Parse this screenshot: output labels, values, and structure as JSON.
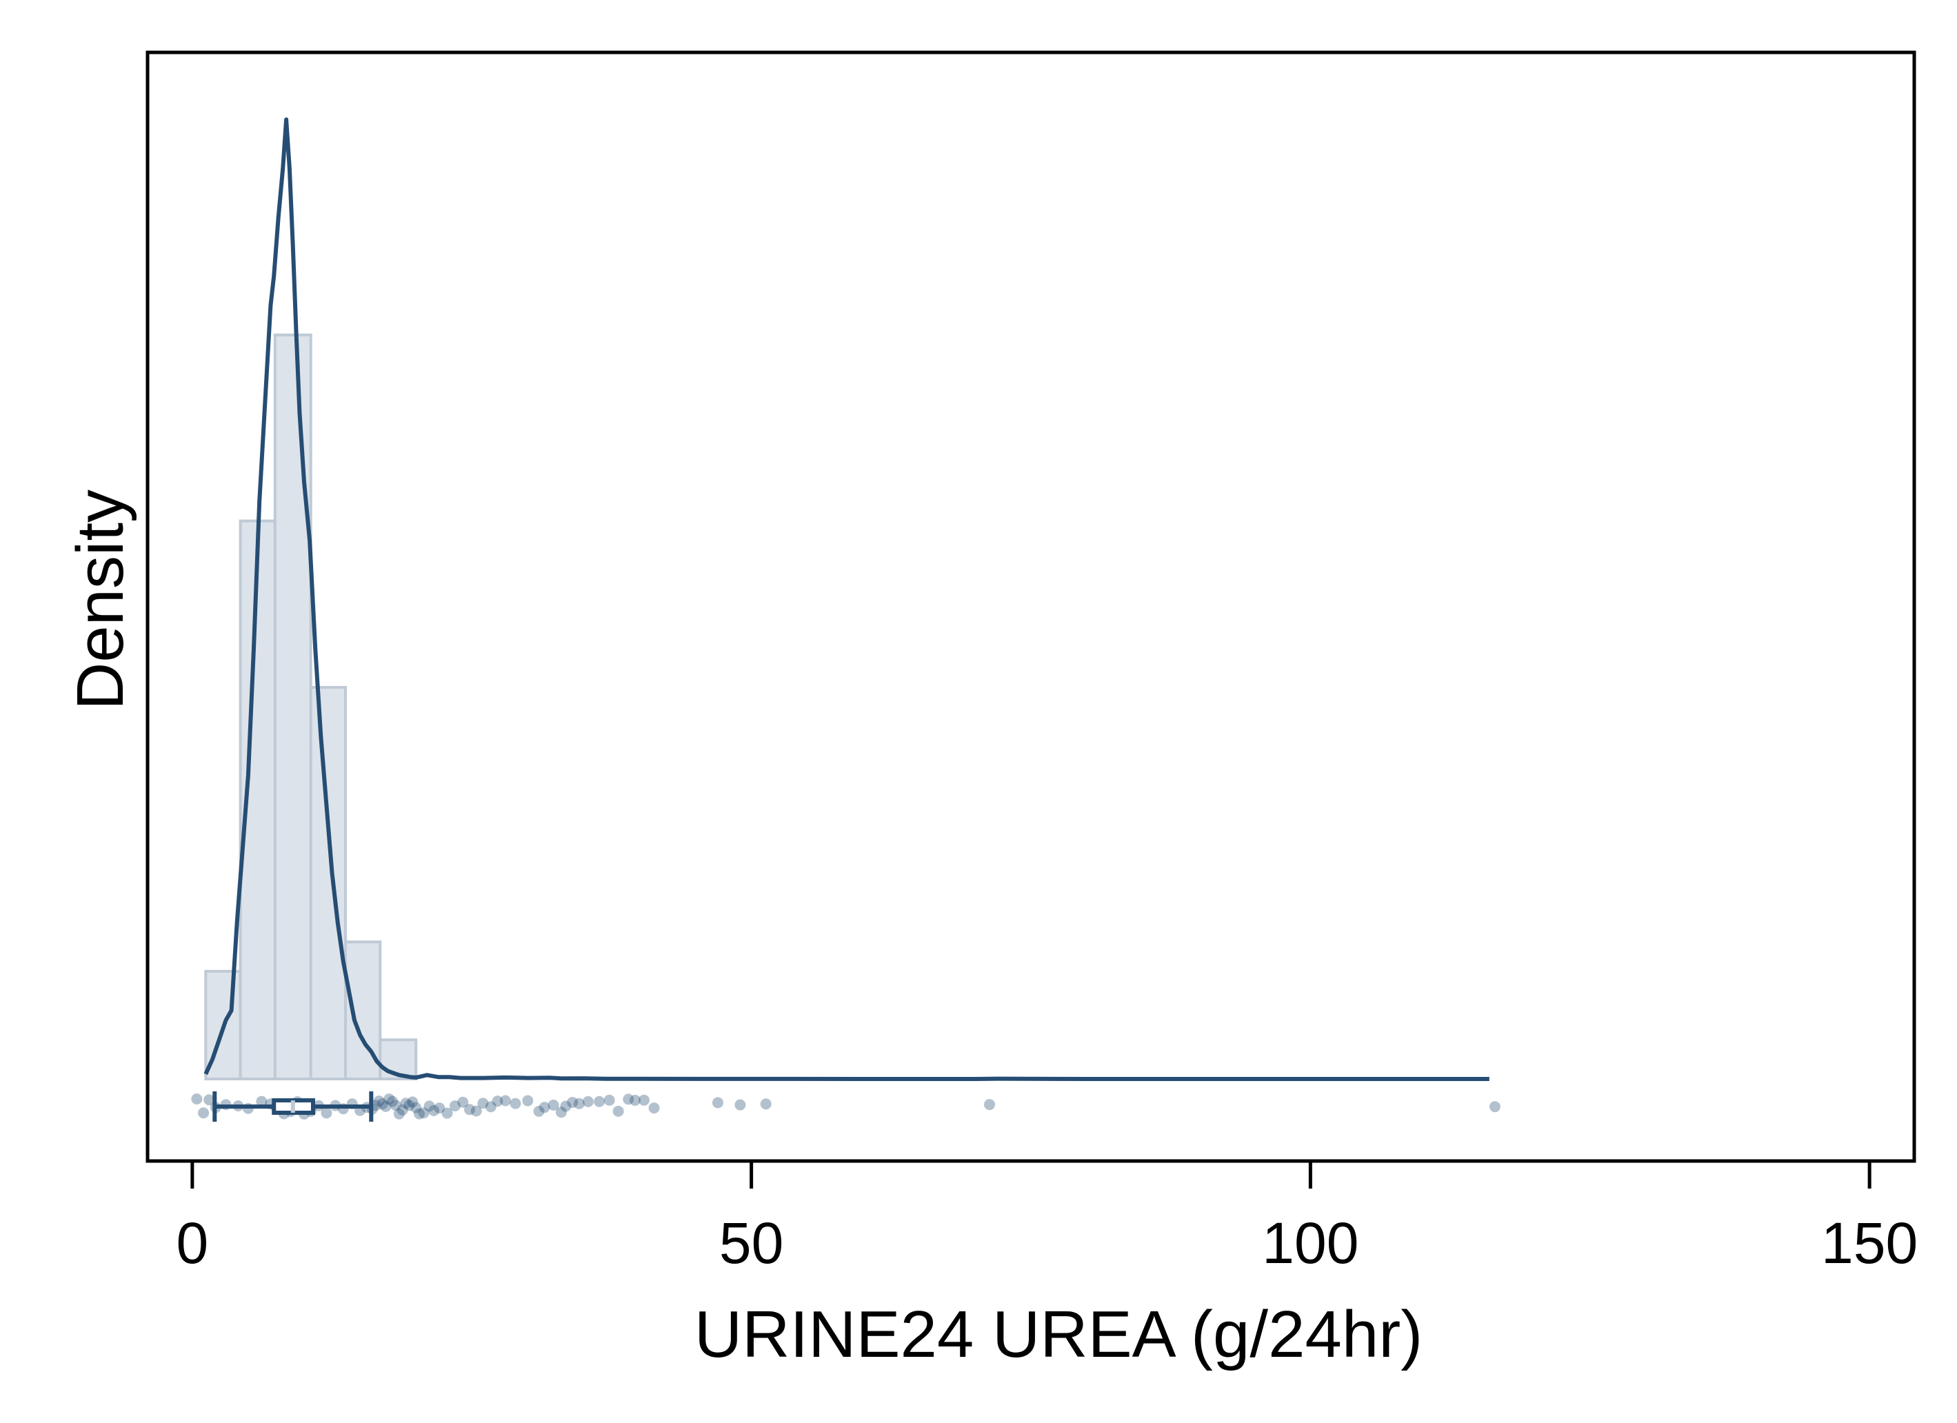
{
  "chart_data": {
    "type": "histogram",
    "xlabel": "URINE24 UREA (g/24hr)",
    "ylabel": "Density",
    "xlim": [
      -4,
      154
    ],
    "x_ticks": [
      0,
      50,
      100,
      150
    ],
    "x_tick_labels": [
      "0",
      "50",
      "100",
      "150"
    ],
    "y_ticks_shown": false,
    "grid": false,
    "legend": "none",
    "colors": {
      "line": "#264d73",
      "bar_fill": "#dce3ea",
      "bar_edge": "#bfcad6",
      "points": "#264d73"
    },
    "histogram": {
      "bin_edges": [
        1.2,
        4.3,
        7.4,
        10.6,
        13.7,
        16.8,
        20.0
      ],
      "relative_heights": [
        0.11,
        0.57,
        0.76,
        0.4,
        0.14,
        0.04
      ]
    },
    "density_curve": {
      "x": [
        1.2,
        1.8,
        2.4,
        3.0,
        3.5,
        4.0,
        4.4,
        5.0,
        5.5,
        6.0,
        6.5,
        7.0,
        7.3,
        7.7,
        8.1,
        8.4,
        8.7,
        9.0,
        9.3,
        9.6,
        10.0,
        10.5,
        11.0,
        11.5,
        12.0,
        12.5,
        13.0,
        13.5,
        14.0,
        14.5,
        15.0,
        15.5,
        16.0,
        16.5,
        17.0,
        17.5,
        18.0,
        18.5,
        19.0,
        19.5,
        20.0,
        21.0,
        22.0,
        23.0,
        24.0,
        26.0,
        28.0,
        30.0,
        32.0,
        33.0,
        35.0,
        37.0,
        40.0,
        45.0,
        50.0,
        60.0,
        70.0,
        72.0,
        80.0,
        90.0,
        100.0,
        110.0,
        116.0
      ],
      "y": [
        0.005,
        0.02,
        0.04,
        0.06,
        0.07,
        0.16,
        0.22,
        0.31,
        0.44,
        0.59,
        0.69,
        0.79,
        0.82,
        0.88,
        0.93,
        0.98,
        0.93,
        0.85,
        0.76,
        0.68,
        0.61,
        0.55,
        0.44,
        0.35,
        0.28,
        0.21,
        0.16,
        0.12,
        0.09,
        0.06,
        0.045,
        0.035,
        0.028,
        0.018,
        0.012,
        0.008,
        0.006,
        0.004,
        0.003,
        0.002,
        0.0015,
        0.004,
        0.002,
        0.002,
        0.001,
        0.001,
        0.0015,
        0.001,
        0.0012,
        0.0005,
        0.0006,
        0.0002,
        0.0002,
        0.0001,
        0.0001,
        0.0,
        0.0,
        0.0003,
        0.0,
        0.0,
        0.0,
        0.0,
        0.0
      ]
    },
    "boxplot": {
      "whisker_low": 2.0,
      "q1": 7.3,
      "median": 9.0,
      "q3": 10.8,
      "whisker_high": 16.0
    },
    "points_x": [
      0.4,
      1.0,
      1.5,
      2.1,
      3.0,
      4.1,
      5.0,
      6.2,
      7.0,
      7.5,
      8.2,
      8.8,
      9.4,
      10.0,
      10.6,
      11.3,
      12.0,
      12.8,
      13.5,
      14.3,
      15.0,
      15.6,
      16.1,
      16.4,
      16.7,
      17.0,
      17.3,
      17.6,
      17.9,
      18.2,
      18.5,
      18.8,
      19.1,
      19.4,
      19.7,
      20.0,
      20.3,
      20.7,
      21.2,
      21.6,
      22.1,
      22.8,
      23.5,
      24.2,
      24.8,
      25.4,
      26.0,
      26.7,
      27.3,
      28.0,
      28.9,
      30.0,
      31.0,
      31.5,
      32.3,
      33.0,
      33.4,
      34.0,
      34.6,
      35.4,
      36.4,
      37.3,
      38.1,
      39.0,
      39.6,
      40.4,
      41.3,
      47.0,
      49.0,
      51.3,
      71.3,
      116.5
    ]
  }
}
